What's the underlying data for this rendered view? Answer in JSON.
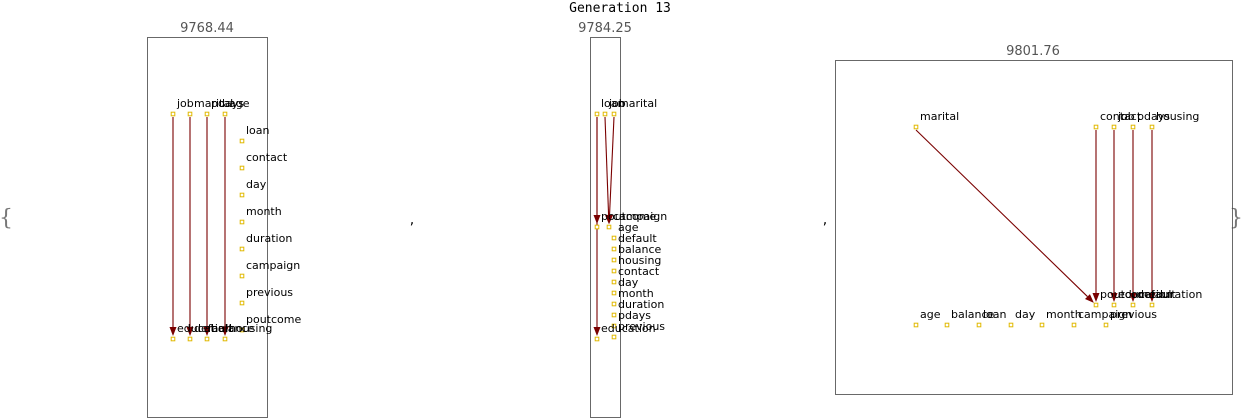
{
  "title": "Generation 13",
  "braces": {
    "open": "{",
    "close": "}"
  },
  "separators": [
    ",",
    ","
  ],
  "panels": [
    {
      "score": "9768.44",
      "nodes": [
        {
          "name": "job"
        },
        {
          "name": "marital"
        },
        {
          "name": "pdays"
        },
        {
          "name": "age"
        },
        {
          "name": "loan"
        },
        {
          "name": "contact"
        },
        {
          "name": "day"
        },
        {
          "name": "month"
        },
        {
          "name": "duration"
        },
        {
          "name": "campaign"
        },
        {
          "name": "previous"
        },
        {
          "name": "poutcome"
        },
        {
          "name": "education"
        },
        {
          "name": "default"
        },
        {
          "name": "balance"
        },
        {
          "name": "housing"
        }
      ],
      "edges": [
        {
          "from": "job",
          "to": "education"
        },
        {
          "name": "",
          "from": "marital",
          "to": "default"
        },
        {
          "from": "pdays",
          "to": "balance"
        },
        {
          "from": "age",
          "to": "housing"
        }
      ]
    },
    {
      "score": "9784.25",
      "nodes": [
        {
          "name": "loan"
        },
        {
          "name": "job"
        },
        {
          "name": "marital"
        },
        {
          "name": "poutcome"
        },
        {
          "name": "campaign"
        },
        {
          "name": "age"
        },
        {
          "name": "default"
        },
        {
          "name": "balance"
        },
        {
          "name": "housing"
        },
        {
          "name": "contact"
        },
        {
          "name": "day"
        },
        {
          "name": "month"
        },
        {
          "name": "duration"
        },
        {
          "name": "pdays"
        },
        {
          "name": "previous"
        },
        {
          "name": "education"
        }
      ],
      "edges": [
        {
          "from": "loan",
          "to": "poutcome"
        },
        {
          "from": "job",
          "to": "campaign"
        },
        {
          "from": "marital",
          "to": "campaign"
        },
        {
          "from": "loan",
          "to": "education"
        }
      ]
    },
    {
      "score": "9801.76",
      "nodes": [
        {
          "name": "marital"
        },
        {
          "name": "contact"
        },
        {
          "name": "job"
        },
        {
          "name": "pdays"
        },
        {
          "name": "housing"
        },
        {
          "name": "age"
        },
        {
          "name": "balance"
        },
        {
          "name": "loan"
        },
        {
          "name": "day"
        },
        {
          "name": "month"
        },
        {
          "name": "campaign"
        },
        {
          "name": "previous"
        },
        {
          "name": "poutcome"
        },
        {
          "name": "education"
        },
        {
          "name": "default"
        },
        {
          "name": "duration"
        }
      ],
      "edges": [
        {
          "from": "marital",
          "to": "poutcome"
        },
        {
          "from": "contact",
          "to": "poutcome"
        },
        {
          "from": "job",
          "to": "education"
        },
        {
          "from": "pdays",
          "to": "default"
        },
        {
          "from": "housing",
          "to": "duration"
        }
      ]
    }
  ]
}
